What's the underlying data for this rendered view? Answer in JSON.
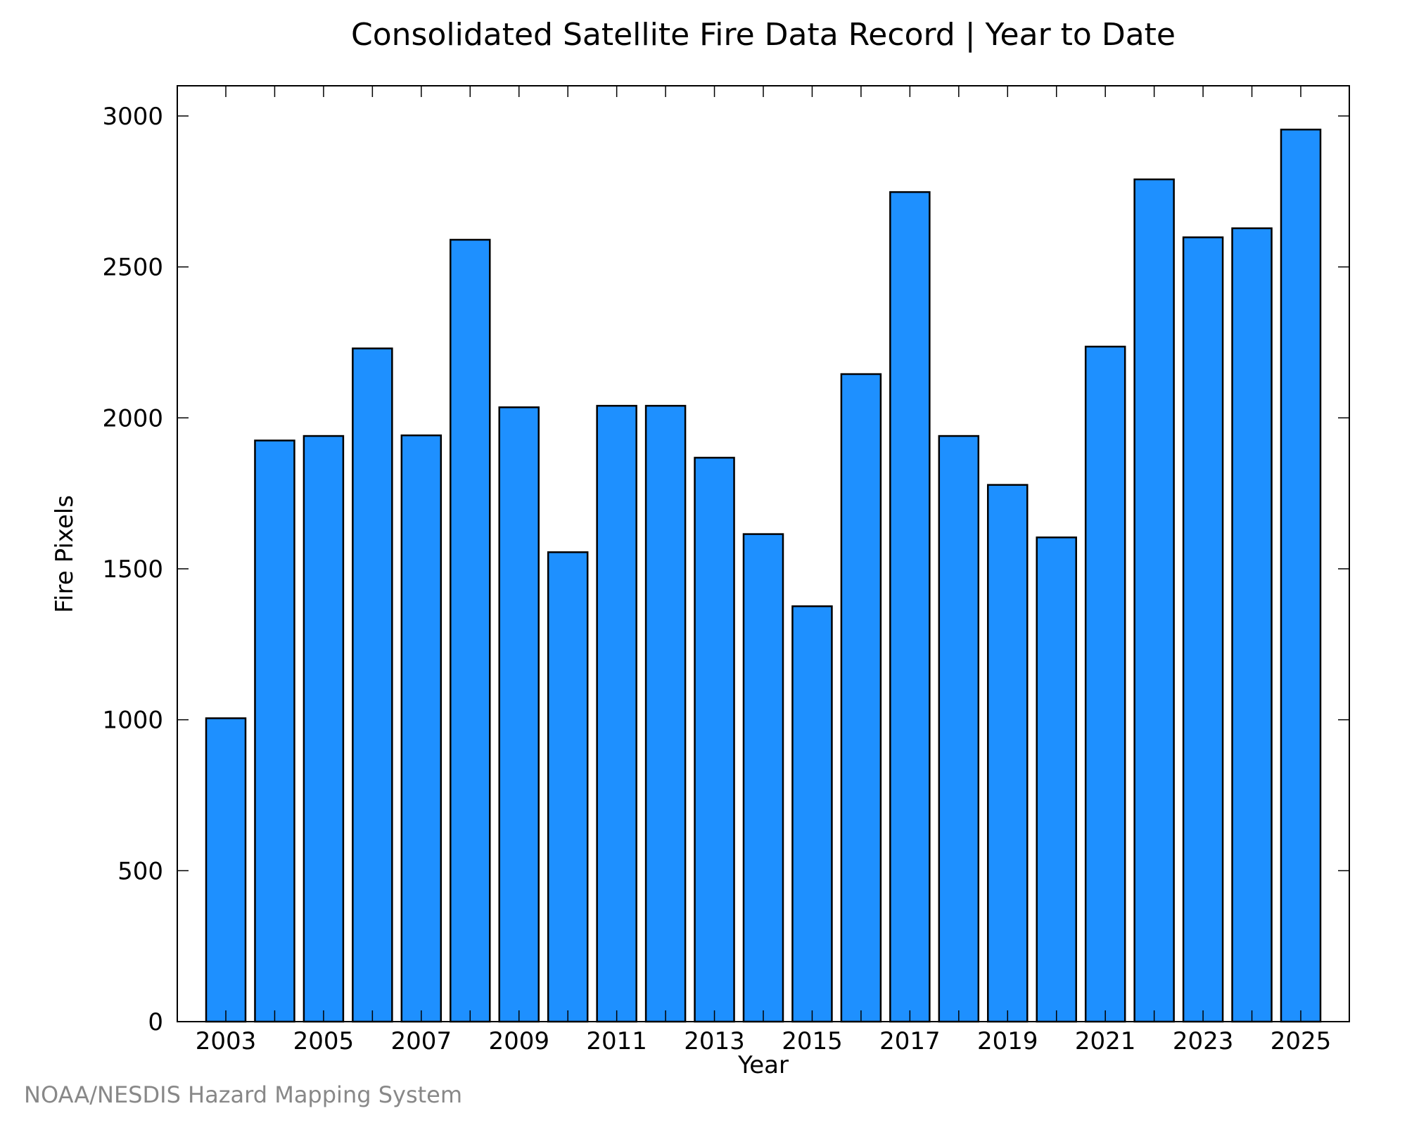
{
  "chart_data": {
    "type": "bar",
    "title": "Consolidated Satellite Fire Data Record | Year to Date",
    "xlabel": "Year",
    "ylabel": "Fire Pixels",
    "categories": [
      "2003",
      "2004",
      "2005",
      "2006",
      "2007",
      "2008",
      "2009",
      "2010",
      "2011",
      "2012",
      "2013",
      "2014",
      "2015",
      "2016",
      "2017",
      "2018",
      "2019",
      "2020",
      "2021",
      "2022",
      "2023",
      "2024",
      "2025"
    ],
    "values": [
      1005,
      1925,
      1940,
      2230,
      1942,
      2590,
      2035,
      1555,
      2040,
      2040,
      1868,
      1615,
      1376,
      2145,
      2748,
      1940,
      1778,
      1604,
      2236,
      2790,
      2598,
      2628,
      2955
    ],
    "x_tick_labels": [
      "2003",
      "2005",
      "2007",
      "2009",
      "2011",
      "2013",
      "2015",
      "2017",
      "2019",
      "2021",
      "2023",
      "2025"
    ],
    "y_tick_labels": [
      "0",
      "500",
      "1000",
      "1500",
      "2000",
      "2500",
      "3000"
    ],
    "ylim": [
      0,
      3100
    ],
    "grid": false,
    "bar_color": "#1e90ff",
    "edge_color": "#000000"
  },
  "footer": {
    "credit": "NOAA/NESDIS Hazard Mapping System"
  }
}
